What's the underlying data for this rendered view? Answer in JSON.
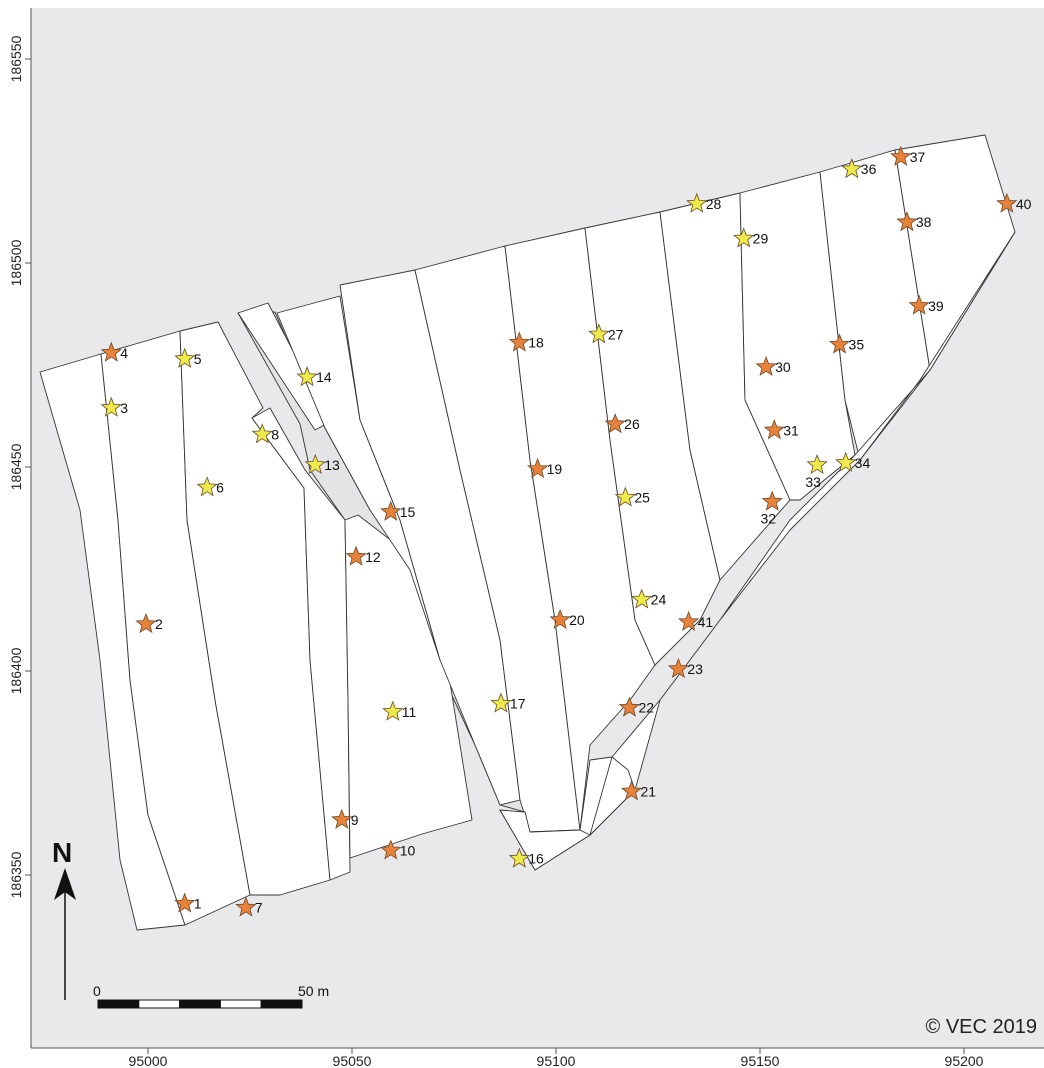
{
  "map": {
    "background_color": "#e9e9eb",
    "parcel_fill": "#ffffff",
    "parcel_stroke": "#333333",
    "sample_colors": {
      "orange": "#e8823a",
      "yellow": "#eeea4a"
    },
    "copyright": "© VEC 2019",
    "north_label": "N",
    "scale_bar": {
      "start_label": "0",
      "end_label": "50 m",
      "length_m": 50,
      "segments": 5
    },
    "x_axis": {
      "ticks": [
        {
          "value": 95000,
          "label": "95000"
        },
        {
          "value": 95050,
          "label": "95050"
        },
        {
          "value": 95100,
          "label": "95100"
        },
        {
          "value": 95150,
          "label": "95150"
        },
        {
          "value": 95200,
          "label": "95200"
        }
      ]
    },
    "y_axis": {
      "ticks": [
        {
          "value": 186350,
          "label": "186350"
        },
        {
          "value": 186400,
          "label": "186400"
        },
        {
          "value": 186450,
          "label": "186450"
        },
        {
          "value": 186500,
          "label": "186500"
        },
        {
          "value": 186550,
          "label": "186550"
        }
      ]
    },
    "points": [
      {
        "id": "1",
        "label": "1",
        "x": 95009.0,
        "y": 186343.0,
        "color": "orange"
      },
      {
        "id": "2",
        "label": "2",
        "x": 94999.5,
        "y": 186411.5,
        "color": "orange"
      },
      {
        "id": "3",
        "label": "3",
        "x": 94991.0,
        "y": 186464.5,
        "color": "yellow"
      },
      {
        "id": "4",
        "label": "4",
        "x": 94991.0,
        "y": 186478.0,
        "color": "orange"
      },
      {
        "id": "5",
        "label": "5",
        "x": 95009.0,
        "y": 186476.5,
        "color": "yellow"
      },
      {
        "id": "6",
        "label": "6",
        "x": 95014.5,
        "y": 186445.0,
        "color": "yellow"
      },
      {
        "id": "7",
        "label": "7",
        "x": 95024.0,
        "y": 186342.0,
        "color": "orange"
      },
      {
        "id": "8",
        "label": "8",
        "x": 95028.0,
        "y": 186458.0,
        "color": "yellow"
      },
      {
        "id": "9",
        "label": "9",
        "x": 95047.5,
        "y": 186363.5,
        "color": "orange"
      },
      {
        "id": "10",
        "label": "10",
        "x": 95059.5,
        "y": 186356.0,
        "color": "orange"
      },
      {
        "id": "11",
        "label": "11",
        "x": 95060.0,
        "y": 186390.0,
        "color": "yellow"
      },
      {
        "id": "12",
        "label": "12",
        "x": 95051.0,
        "y": 186428.0,
        "color": "orange"
      },
      {
        "id": "13",
        "label": "13",
        "x": 95041.0,
        "y": 186450.5,
        "color": "yellow"
      },
      {
        "id": "14",
        "label": "14",
        "x": 95039.0,
        "y": 186472.0,
        "color": "yellow"
      },
      {
        "id": "15",
        "label": "15",
        "x": 95059.5,
        "y": 186439.0,
        "color": "orange"
      },
      {
        "id": "16",
        "label": "16",
        "x": 95091.0,
        "y": 186354.0,
        "color": "yellow"
      },
      {
        "id": "17",
        "label": "17",
        "x": 95086.5,
        "y": 186392.0,
        "color": "yellow"
      },
      {
        "id": "18",
        "label": "18",
        "x": 95091.0,
        "y": 186480.5,
        "color": "orange"
      },
      {
        "id": "19",
        "label": "19",
        "x": 95095.5,
        "y": 186449.5,
        "color": "orange"
      },
      {
        "id": "20",
        "label": "20",
        "x": 95101.0,
        "y": 186412.5,
        "color": "orange"
      },
      {
        "id": "21",
        "label": "21",
        "x": 95118.5,
        "y": 186370.5,
        "color": "orange"
      },
      {
        "id": "22",
        "label": "22",
        "x": 95118.0,
        "y": 186391.0,
        "color": "orange"
      },
      {
        "id": "23",
        "label": "23",
        "x": 95130.0,
        "y": 186400.5,
        "color": "orange"
      },
      {
        "id": "24",
        "label": "24",
        "x": 95121.0,
        "y": 186417.5,
        "color": "yellow"
      },
      {
        "id": "25",
        "label": "25",
        "x": 95117.0,
        "y": 186442.5,
        "color": "yellow"
      },
      {
        "id": "26",
        "label": "26",
        "x": 95114.5,
        "y": 186460.5,
        "color": "orange"
      },
      {
        "id": "27",
        "label": "27",
        "x": 95110.5,
        "y": 186482.5,
        "color": "yellow"
      },
      {
        "id": "28",
        "label": "28",
        "x": 95134.5,
        "y": 186514.5,
        "color": "yellow"
      },
      {
        "id": "29",
        "label": "29",
        "x": 95146.0,
        "y": 186506.0,
        "color": "yellow"
      },
      {
        "id": "30",
        "label": "30",
        "x": 95151.5,
        "y": 186474.5,
        "color": "orange"
      },
      {
        "id": "31",
        "label": "31",
        "x": 95153.5,
        "y": 186459.0,
        "color": "orange"
      },
      {
        "id": "32",
        "label": "32",
        "x": 95153.0,
        "y": 186441.5,
        "color": "orange"
      },
      {
        "id": "33",
        "label": "33",
        "x": 95164.0,
        "y": 186450.5,
        "color": "yellow"
      },
      {
        "id": "34",
        "label": "34",
        "x": 95171.0,
        "y": 186451.0,
        "color": "yellow"
      },
      {
        "id": "35",
        "label": "35",
        "x": 95169.5,
        "y": 186480.0,
        "color": "orange"
      },
      {
        "id": "36",
        "label": "36",
        "x": 95172.5,
        "y": 186523.0,
        "color": "yellow"
      },
      {
        "id": "37",
        "label": "37",
        "x": 95184.5,
        "y": 186526.0,
        "color": "orange"
      },
      {
        "id": "38",
        "label": "38",
        "x": 95186.0,
        "y": 186510.0,
        "color": "orange"
      },
      {
        "id": "39",
        "label": "39",
        "x": 95189.0,
        "y": 186489.5,
        "color": "orange"
      },
      {
        "id": "40",
        "label": "40",
        "x": 95210.5,
        "y": 186514.5,
        "color": "orange"
      },
      {
        "id": "41",
        "label": "41",
        "x": 95132.5,
        "y": 186412.0,
        "color": "orange"
      }
    ]
  }
}
